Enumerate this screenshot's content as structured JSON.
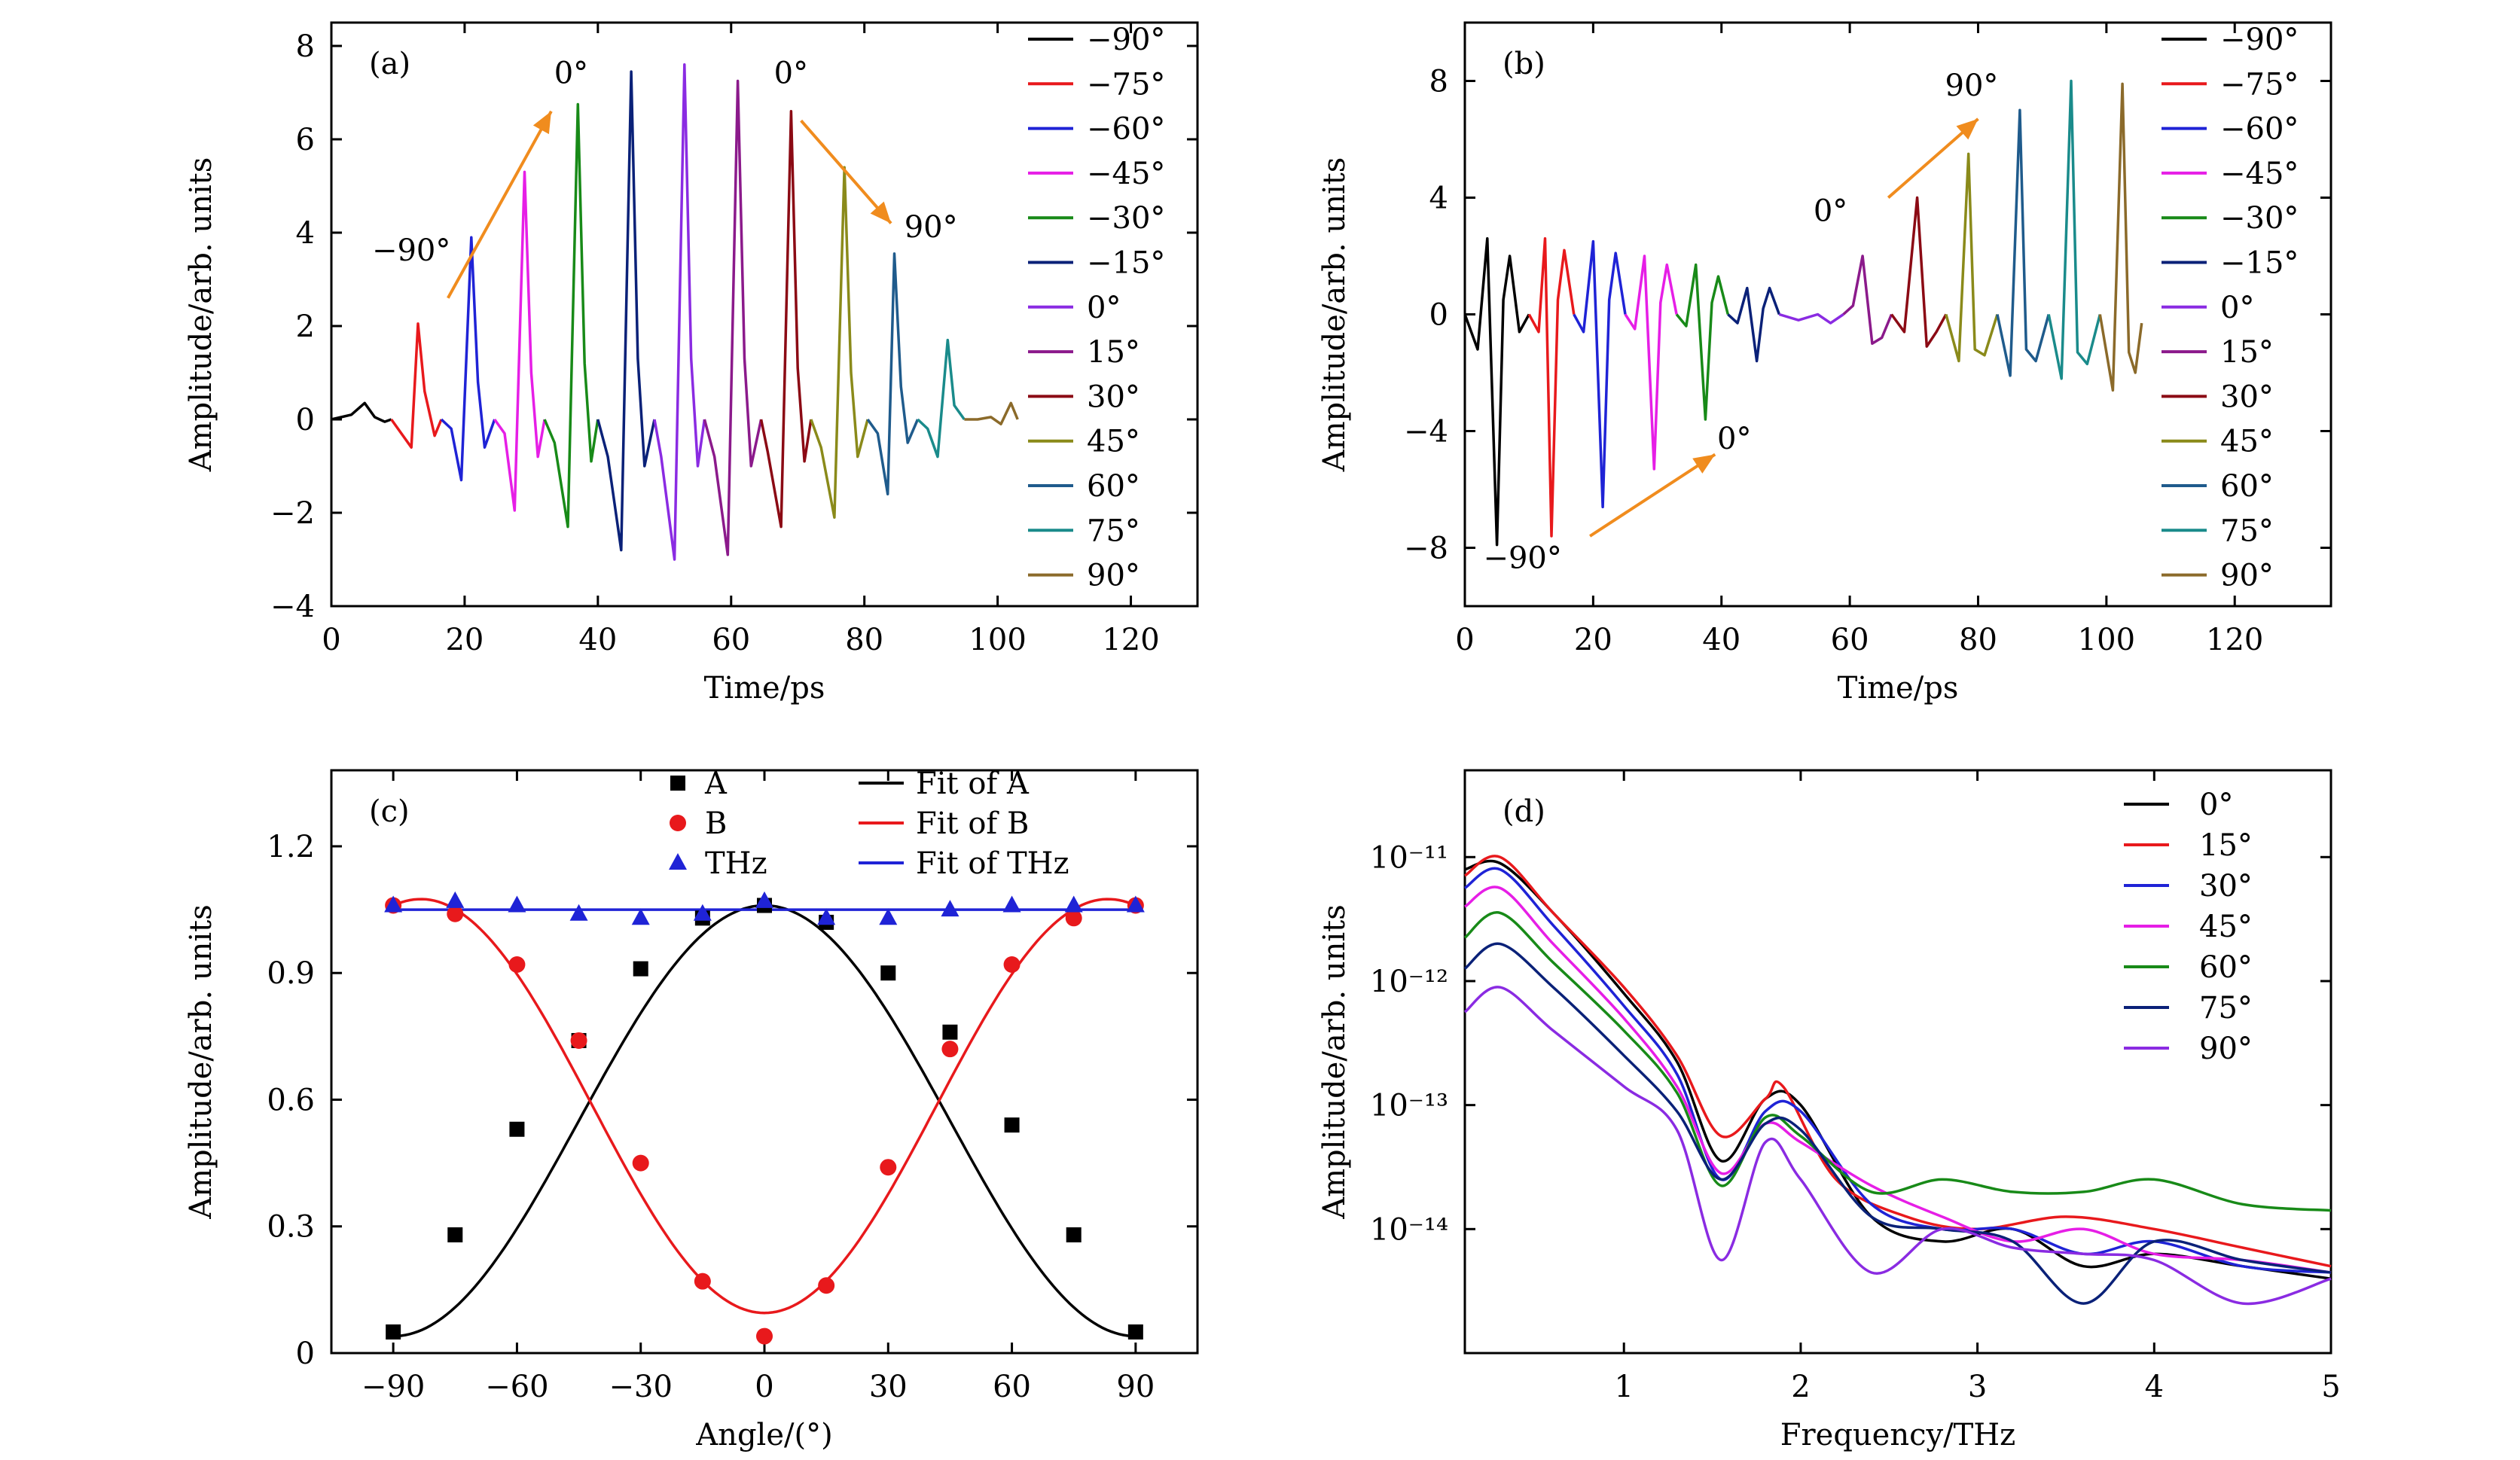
{
  "chart_data": [
    {
      "panel": "a",
      "type": "line",
      "panel_label": "(a)",
      "xlabel": "Time/ps",
      "ylabel": "Amplitude/arb. units",
      "xlim": [
        0,
        130
      ],
      "ylim": [
        -4,
        8.5
      ],
      "xticks": [
        0,
        20,
        40,
        60,
        80,
        100,
        120
      ],
      "yticks": [
        -4,
        -2,
        0,
        2,
        4,
        6,
        8
      ],
      "legend": {
        "position": "right"
      },
      "series": [
        {
          "name": "−90°",
          "color": "#000000",
          "x": [
            0,
            3,
            5,
            6.5,
            8,
            9
          ],
          "y": [
            0,
            0.1,
            0.35,
            0.05,
            -0.05,
            0
          ]
        },
        {
          "name": "−75°",
          "color": "#e8191c",
          "x": [
            9,
            10.5,
            12,
            13,
            14,
            15.5,
            16.5
          ],
          "y": [
            0,
            -0.3,
            -0.6,
            2.05,
            0.6,
            -0.35,
            0
          ]
        },
        {
          "name": "−60°",
          "color": "#1f23d6",
          "x": [
            16.5,
            18,
            19.5,
            21,
            22,
            23,
            24.5
          ],
          "y": [
            0,
            -0.2,
            -1.3,
            3.9,
            0.8,
            -0.6,
            0
          ]
        },
        {
          "name": "−45°",
          "color": "#e61ee6",
          "x": [
            24.5,
            26,
            27.5,
            29,
            30,
            31,
            32
          ],
          "y": [
            0,
            -0.3,
            -1.95,
            5.3,
            1,
            -0.8,
            0
          ]
        },
        {
          "name": "−30°",
          "color": "#188a18",
          "x": [
            32,
            33.5,
            35.5,
            37,
            38,
            39,
            40
          ],
          "y": [
            0,
            -0.5,
            -2.3,
            6.75,
            1.2,
            -0.9,
            0
          ]
        },
        {
          "name": "−15°",
          "color": "#0a2178",
          "x": [
            40,
            41.5,
            43.5,
            45,
            46,
            47,
            48.5
          ],
          "y": [
            0,
            -0.8,
            -2.8,
            7.45,
            1.3,
            -1,
            0
          ]
        },
        {
          "name": "0°",
          "color": "#8a2be2",
          "x": [
            48.5,
            49.5,
            51.5,
            53,
            54,
            55,
            56
          ],
          "y": [
            0,
            -0.8,
            -3.0,
            7.6,
            1.3,
            -1,
            0
          ]
        },
        {
          "name": "15°",
          "color": "#8b1a8b",
          "x": [
            56,
            57.5,
            59.5,
            61,
            62,
            63,
            64.5
          ],
          "y": [
            0,
            -0.8,
            -2.9,
            7.25,
            1.3,
            -1,
            0
          ]
        },
        {
          "name": "30°",
          "color": "#8b0a14",
          "x": [
            64.5,
            65.5,
            67.5,
            69,
            70,
            71,
            72
          ],
          "y": [
            0,
            -0.7,
            -2.3,
            6.6,
            1.1,
            -0.9,
            0
          ]
        },
        {
          "name": "45°",
          "color": "#8a8a1a",
          "x": [
            72,
            73.5,
            75.5,
            77,
            78,
            79,
            80.5
          ],
          "y": [
            0,
            -0.6,
            -2.1,
            5.4,
            1,
            -0.8,
            0
          ]
        },
        {
          "name": "60°",
          "color": "#1f5b8c",
          "x": [
            80.5,
            82,
            83.5,
            84.5,
            85.5,
            86.5,
            88
          ],
          "y": [
            0,
            -0.3,
            -1.6,
            3.55,
            0.7,
            -0.5,
            0
          ]
        },
        {
          "name": "75°",
          "color": "#1a8b8b",
          "x": [
            88,
            89.5,
            91,
            92.5,
            93.5,
            95
          ],
          "y": [
            0,
            -0.2,
            -0.8,
            1.7,
            0.3,
            0
          ]
        },
        {
          "name": "90°",
          "color": "#8b6a2a",
          "x": [
            95,
            97,
            99,
            100.5,
            102,
            103
          ],
          "y": [
            0,
            0,
            0.05,
            -0.1,
            0.35,
            0
          ]
        }
      ],
      "annotations": [
        {
          "text": "−90°",
          "x": 12,
          "y": 3.4
        },
        {
          "text": "0°",
          "x": 36,
          "y": 7.2
        },
        {
          "text": "0°",
          "x": 69,
          "y": 7.2
        },
        {
          "text": "90°",
          "x": 90,
          "y": 3.9
        }
      ]
    },
    {
      "panel": "b",
      "type": "line",
      "panel_label": "(b)",
      "xlabel": "Time/ps",
      "ylabel": "Amplitude/arb. units",
      "xlim": [
        0,
        135
      ],
      "ylim": [
        -10,
        10
      ],
      "xticks": [
        0,
        20,
        40,
        60,
        80,
        100,
        120
      ],
      "yticks": [
        -8,
        -4,
        0,
        4,
        8
      ],
      "legend": {
        "position": "right"
      },
      "series": [
        {
          "name": "−90°",
          "color": "#000000",
          "x": [
            0,
            2,
            3.5,
            5,
            6,
            7,
            8.5,
            10
          ],
          "y": [
            0,
            -1.2,
            2.6,
            -7.9,
            0.5,
            2.0,
            -0.6,
            0
          ]
        },
        {
          "name": "−75°",
          "color": "#e8191c",
          "x": [
            10,
            11.5,
            12.5,
            13.5,
            14.5,
            15.5,
            17
          ],
          "y": [
            0,
            -0.6,
            2.6,
            -7.6,
            0.5,
            2.2,
            0
          ]
        },
        {
          "name": "−60°",
          "color": "#1f23d6",
          "x": [
            17,
            18.5,
            20,
            21.5,
            22.5,
            23.5,
            25
          ],
          "y": [
            0,
            -0.6,
            2.5,
            -6.6,
            0.5,
            2.1,
            0
          ]
        },
        {
          "name": "−45°",
          "color": "#e61ee6",
          "x": [
            25,
            26.5,
            28,
            29.5,
            30.5,
            31.5,
            33
          ],
          "y": [
            0,
            -0.5,
            2.0,
            -5.3,
            0.4,
            1.7,
            0
          ]
        },
        {
          "name": "−30°",
          "color": "#188a18",
          "x": [
            33,
            34.5,
            36,
            37.5,
            38.5,
            39.5,
            41
          ],
          "y": [
            0,
            -0.4,
            1.7,
            -3.6,
            0.4,
            1.3,
            0
          ]
        },
        {
          "name": "−15°",
          "color": "#0a2178",
          "x": [
            41,
            42.5,
            44,
            45.5,
            46.5,
            47.5,
            49
          ],
          "y": [
            0,
            -0.3,
            0.9,
            -1.6,
            0.2,
            0.9,
            0
          ]
        },
        {
          "name": "0°",
          "color": "#8a2be2",
          "x": [
            49,
            52,
            55,
            57,
            59
          ],
          "y": [
            0,
            -0.2,
            0,
            -0.3,
            0
          ]
        },
        {
          "name": "15°",
          "color": "#8b1a8b",
          "x": [
            59,
            60.5,
            62,
            63.5,
            65,
            66.5
          ],
          "y": [
            0,
            0.3,
            2.0,
            -1.0,
            -0.8,
            0
          ]
        },
        {
          "name": "30°",
          "color": "#8b0a14",
          "x": [
            66.5,
            68.5,
            70.5,
            72,
            73.5,
            75
          ],
          "y": [
            0,
            -0.6,
            4.0,
            -1.1,
            -0.6,
            0
          ]
        },
        {
          "name": "45°",
          "color": "#8a8a1a",
          "x": [
            75,
            77,
            78.5,
            79.5,
            81,
            83
          ],
          "y": [
            0,
            -1.6,
            5.5,
            -1.2,
            -1.4,
            0
          ]
        },
        {
          "name": "60°",
          "color": "#1f5b8c",
          "x": [
            83,
            85,
            86.5,
            87.5,
            89,
            91
          ],
          "y": [
            0,
            -2.1,
            7.0,
            -1.2,
            -1.6,
            0
          ]
        },
        {
          "name": "75°",
          "color": "#1a8b8b",
          "x": [
            91,
            93,
            94.5,
            95.5,
            97,
            99
          ],
          "y": [
            0,
            -2.2,
            8.0,
            -1.3,
            -1.7,
            0
          ]
        },
        {
          "name": "90°",
          "color": "#8b6a2a",
          "x": [
            99,
            101,
            102.5,
            103.5,
            104.5,
            105.5
          ],
          "y": [
            0,
            -2.6,
            7.9,
            -1.3,
            -2.0,
            -0.3
          ]
        }
      ],
      "annotations": [
        {
          "text": "90°",
          "x": 79,
          "y": 7.5
        },
        {
          "text": "0°",
          "x": 57,
          "y": 3.2
        },
        {
          "text": "0°",
          "x": 42,
          "y": -4.6
        },
        {
          "text": "−90°",
          "x": 9,
          "y": -8.7
        }
      ]
    },
    {
      "panel": "c",
      "type": "scatter",
      "panel_label": "(c)",
      "xlabel": "Angle/(°)",
      "ylabel": "Amplitude/arb. units",
      "xlim": [
        -105,
        105
      ],
      "ylim": [
        0,
        1.38
      ],
      "xticks": [
        -90,
        -60,
        -30,
        0,
        30,
        60,
        90
      ],
      "ytick_labels": [
        "0",
        "0.3",
        "0.6",
        "0.9",
        "1.2"
      ],
      "yticks": [
        0,
        0.3,
        0.6,
        0.9,
        1.2
      ],
      "legend": {
        "position": "top-right",
        "columns": 2
      },
      "series": [
        {
          "name": "A",
          "marker": "square",
          "color": "#000000",
          "x": [
            -90,
            -75,
            -60,
            -45,
            -30,
            -15,
            0,
            15,
            30,
            45,
            60,
            75,
            90
          ],
          "y": [
            0.05,
            0.28,
            0.53,
            0.74,
            0.91,
            1.03,
            1.06,
            1.02,
            0.9,
            0.76,
            0.54,
            0.28,
            0.05
          ]
        },
        {
          "name": "B",
          "marker": "circle",
          "color": "#e8191c",
          "x": [
            -90,
            -75,
            -60,
            -45,
            -30,
            -15,
            0,
            15,
            30,
            45,
            60,
            75,
            90
          ],
          "y": [
            1.06,
            1.04,
            0.92,
            0.74,
            0.45,
            0.17,
            0.04,
            0.16,
            0.44,
            0.72,
            0.92,
            1.03,
            1.06
          ]
        },
        {
          "name": "THz",
          "marker": "triangle",
          "color": "#1f23d6",
          "x": [
            -90,
            -75,
            -60,
            -45,
            -30,
            -15,
            0,
            15,
            30,
            45,
            60,
            75,
            90
          ],
          "y": [
            1.06,
            1.07,
            1.06,
            1.04,
            1.03,
            1.04,
            1.07,
            1.03,
            1.03,
            1.05,
            1.06,
            1.06,
            1.06
          ]
        }
      ],
      "fits": [
        {
          "name": "Fit of A",
          "color": "#000000",
          "model": "0.04 + 1.02*cos^2(angle)"
        },
        {
          "name": "Fit of B",
          "color": "#e8191c",
          "model": "0.095 + 0.98*sin^2(1.08*angle)"
        },
        {
          "name": "Fit of THz",
          "color": "#1f23d6",
          "model": "1.05"
        }
      ]
    },
    {
      "panel": "d",
      "type": "line",
      "panel_label": "(d)",
      "xlabel": "Frequency/THz",
      "ylabel": "Amplitude/arb. units",
      "xlim": [
        0.1,
        5
      ],
      "ylim_log10": [
        -15.0,
        -10.3
      ],
      "yscale": "log",
      "xticks": [
        1,
        2,
        3,
        4,
        5
      ],
      "ytick_labels": [
        "10⁻¹¹",
        "10⁻¹²",
        "10⁻¹³",
        "10⁻¹⁴"
      ],
      "yticks_log10": [
        -11,
        -12,
        -13,
        -14
      ],
      "legend": {
        "position": "top-right"
      },
      "series": [
        {
          "name": "0°",
          "color": "#000000",
          "x": [
            0.1,
            0.3,
            0.6,
            1.0,
            1.3,
            1.55,
            1.8,
            2.0,
            2.4,
            2.8,
            3.2,
            3.6,
            4.0,
            4.5,
            5.0
          ],
          "log10y": [
            -11.1,
            -11.05,
            -11.45,
            -12.1,
            -12.65,
            -13.45,
            -12.95,
            -13.0,
            -13.9,
            -14.1,
            -14.0,
            -14.3,
            -14.2,
            -14.3,
            -14.4
          ]
        },
        {
          "name": "15°",
          "color": "#e8191c",
          "x": [
            0.1,
            0.3,
            0.6,
            1.0,
            1.3,
            1.55,
            1.8,
            1.9,
            2.2,
            2.6,
            3.0,
            3.5,
            4.0,
            4.5,
            5.0
          ],
          "log10y": [
            -11.15,
            -11.0,
            -11.45,
            -12.05,
            -12.6,
            -13.25,
            -12.95,
            -12.85,
            -13.6,
            -13.9,
            -14.0,
            -13.9,
            -14.0,
            -14.15,
            -14.3
          ]
        },
        {
          "name": "30°",
          "color": "#1f23d6",
          "x": [
            0.1,
            0.3,
            0.6,
            1.0,
            1.3,
            1.55,
            1.8,
            2.0,
            2.4,
            2.8,
            3.2,
            3.6,
            4.0,
            4.5,
            5.0
          ],
          "log10y": [
            -11.25,
            -11.1,
            -11.55,
            -12.2,
            -12.75,
            -13.6,
            -13.05,
            -13.05,
            -13.8,
            -14.0,
            -14.0,
            -14.2,
            -14.1,
            -14.3,
            -14.35
          ]
        },
        {
          "name": "45°",
          "color": "#e61ee6",
          "x": [
            0.1,
            0.3,
            0.6,
            1.0,
            1.3,
            1.55,
            1.8,
            2.0,
            2.4,
            2.8,
            3.2,
            3.6,
            4.0,
            4.5,
            5.0
          ],
          "log10y": [
            -11.4,
            -11.25,
            -11.7,
            -12.3,
            -12.85,
            -13.55,
            -13.15,
            -13.3,
            -13.65,
            -13.9,
            -14.1,
            -14.0,
            -14.2,
            -14.25,
            -14.35
          ]
        },
        {
          "name": "60°",
          "color": "#188a18",
          "x": [
            0.1,
            0.3,
            0.6,
            1.0,
            1.3,
            1.55,
            1.8,
            2.0,
            2.4,
            2.8,
            3.2,
            3.6,
            4.0,
            4.5,
            5.0
          ],
          "log10y": [
            -11.65,
            -11.45,
            -11.85,
            -12.4,
            -12.9,
            -13.65,
            -13.1,
            -13.25,
            -13.7,
            -13.6,
            -13.7,
            -13.7,
            -13.6,
            -13.8,
            -13.85
          ]
        },
        {
          "name": "75°",
          "color": "#0a2178",
          "x": [
            0.1,
            0.3,
            0.6,
            1.0,
            1.3,
            1.55,
            1.8,
            2.0,
            2.4,
            2.8,
            3.2,
            3.6,
            4.0,
            4.5,
            5.0
          ],
          "log10y": [
            -11.9,
            -11.7,
            -12.05,
            -12.6,
            -13.05,
            -13.6,
            -13.15,
            -13.2,
            -13.9,
            -14.0,
            -14.1,
            -14.6,
            -14.1,
            -14.25,
            -14.35
          ]
        },
        {
          "name": "90°",
          "color": "#8a2be2",
          "x": [
            0.1,
            0.3,
            0.6,
            1.0,
            1.3,
            1.55,
            1.8,
            2.0,
            2.4,
            2.8,
            3.2,
            3.6,
            4.0,
            4.5,
            5.0
          ],
          "log10y": [
            -12.25,
            -12.05,
            -12.4,
            -12.85,
            -13.2,
            -14.25,
            -13.3,
            -13.6,
            -14.35,
            -14.0,
            -14.15,
            -14.2,
            -14.25,
            -14.6,
            -14.4
          ]
        }
      ]
    }
  ]
}
